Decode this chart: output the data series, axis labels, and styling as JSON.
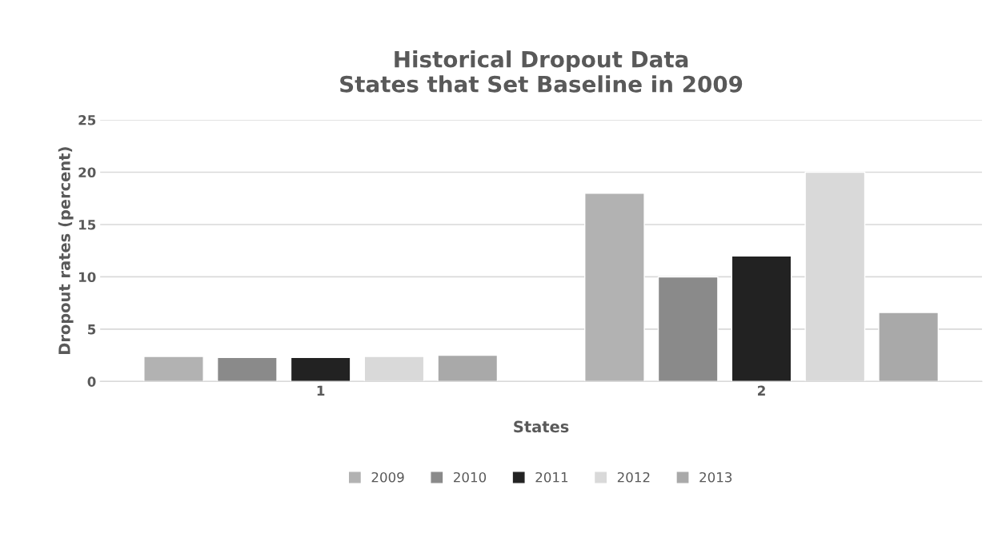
{
  "chart_data": {
    "type": "bar",
    "title": "Historical Dropout Data\nStates that Set Baseline in 2009",
    "xlabel": "States",
    "ylabel": "Dropout rates (percent)",
    "categories": [
      "1",
      "2"
    ],
    "series": [
      {
        "name": "2009",
        "color": "#b2b2b2",
        "values": [
          2.4,
          18
        ]
      },
      {
        "name": "2010",
        "color": "#8a8a8a",
        "values": [
          2.3,
          10
        ]
      },
      {
        "name": "2011",
        "color": "#222222",
        "values": [
          2.3,
          12
        ]
      },
      {
        "name": "2012",
        "color": "#d9d9d9",
        "values": [
          2.4,
          20
        ]
      },
      {
        "name": "2013",
        "color": "#a9a9a9",
        "values": [
          2.5,
          6.6
        ]
      }
    ],
    "ylim": [
      0,
      25
    ],
    "yticks": [
      0,
      5,
      10,
      15,
      20,
      25
    ],
    "grid": "y",
    "legend": "bottom"
  }
}
